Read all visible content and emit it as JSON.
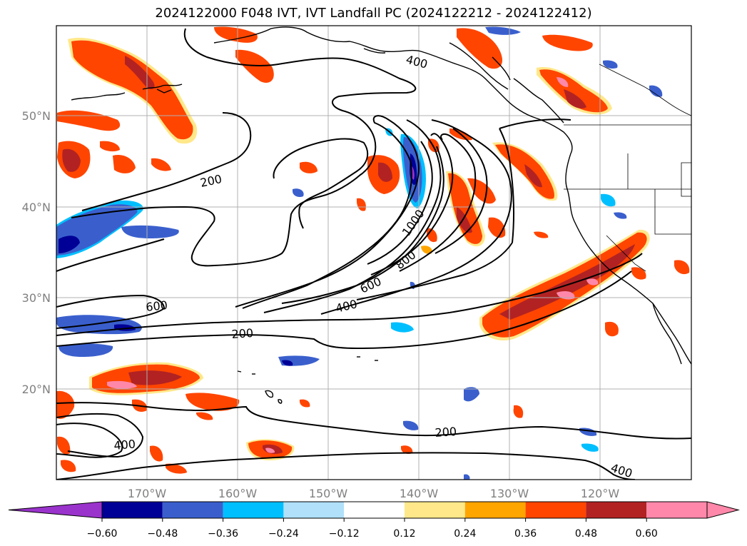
{
  "title": "2024122000 F048 IVT, IVT Landfall PC (2024122212 - 2024122412)",
  "map": {
    "lon_ticks": [
      "170°W",
      "160°W",
      "150°W",
      "140°W",
      "130°W",
      "120°W"
    ],
    "lat_ticks": [
      "50°N",
      "40°N",
      "30°N",
      "20°N"
    ],
    "contour_labels": [
      "400",
      "200",
      "1000",
      "800",
      "600",
      "400",
      "600",
      "200",
      "400",
      "200",
      "400"
    ]
  },
  "colorbar": {
    "ticks": [
      "−0.60",
      "−0.48",
      "−0.36",
      "−0.24",
      "−0.12",
      "0.12",
      "0.24",
      "0.36",
      "0.48",
      "0.60"
    ],
    "colors": [
      "#9a33cc",
      "#000096",
      "#3a5fcd",
      "#00bfff",
      "#b0e0fa",
      "#ffffff",
      "#ffe88a",
      "#ffa500",
      "#ff4500",
      "#b22222",
      "#ff88aa",
      "#ff88aa"
    ]
  },
  "colors": {
    "pos_high": "#ff88aa",
    "pos_mid": "#b22222",
    "pos": "#ff4500",
    "pos_low": "#ffa500",
    "pos_edge": "#ffe88a",
    "neg": "#00bfff",
    "neg_mid": "#3a5fcd",
    "neg_high": "#000096",
    "neg_max": "#9a33cc"
  }
}
